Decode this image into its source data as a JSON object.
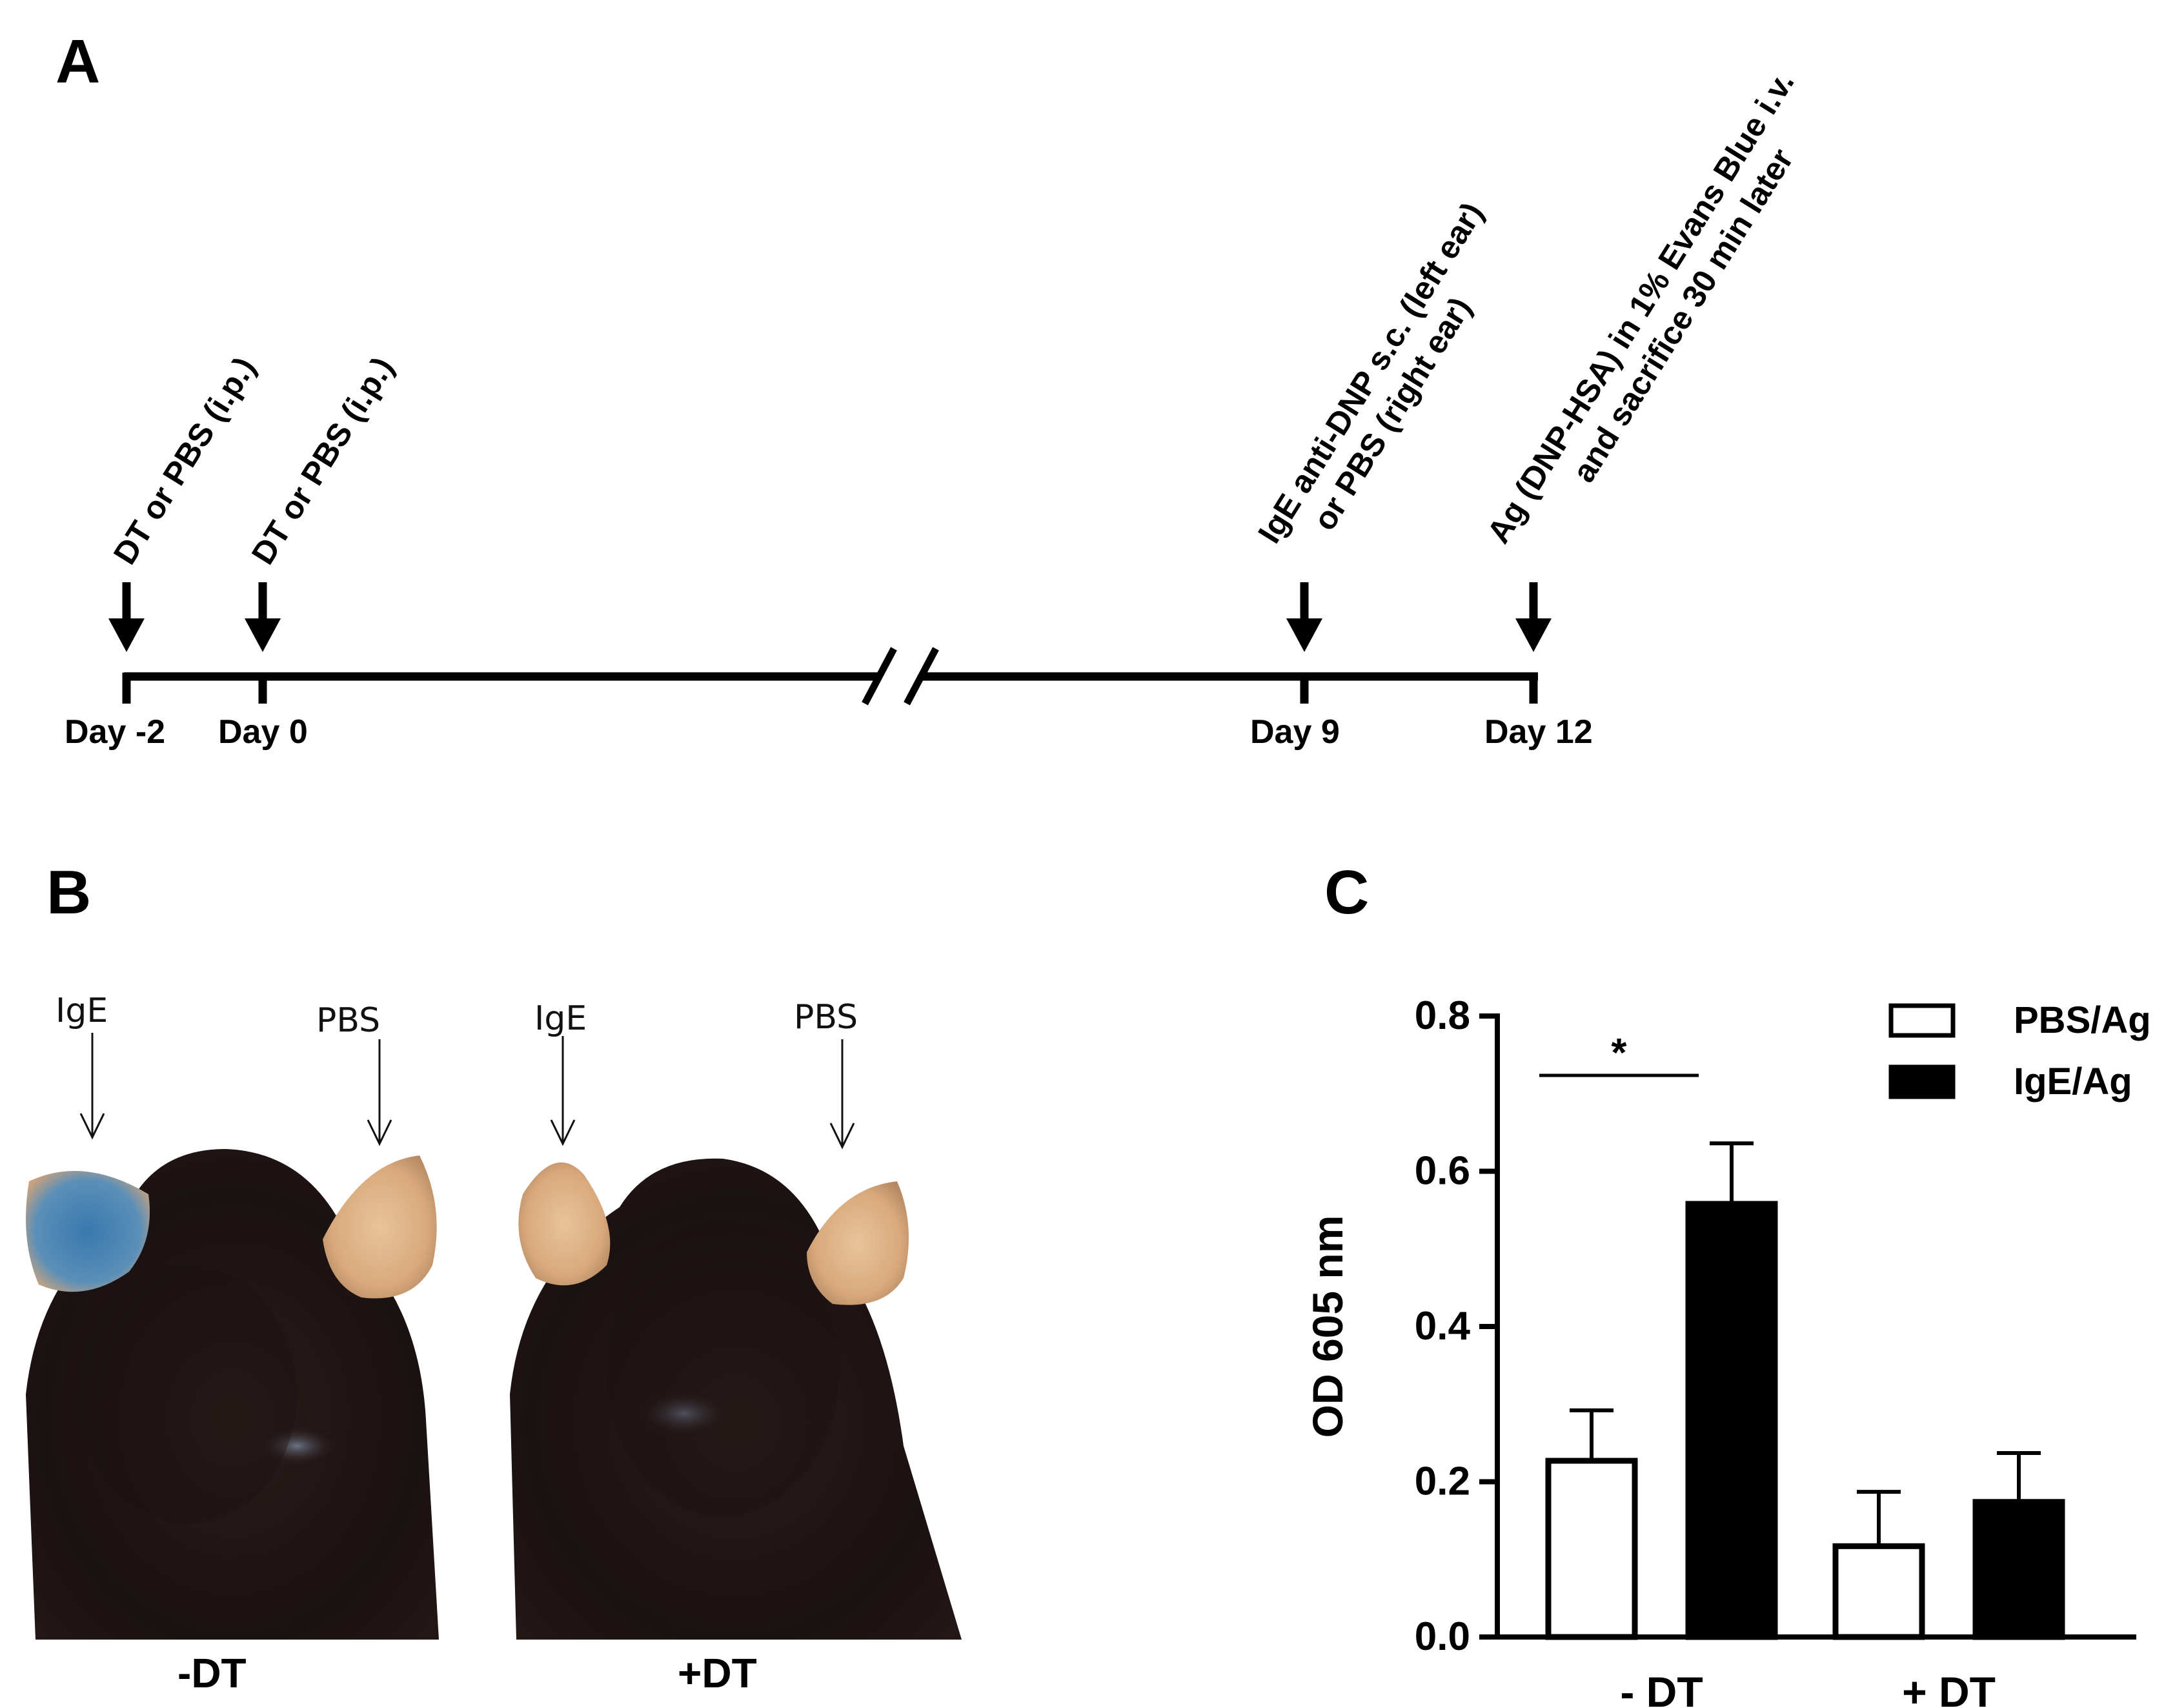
{
  "panel_a": {
    "letter": "A",
    "events": [
      {
        "day_label": "Day -2",
        "annotation_lines": [
          "DT or PBS (i.p.)"
        ]
      },
      {
        "day_label": "Day 0",
        "annotation_lines": [
          "DT or PBS (i.p.)"
        ]
      },
      {
        "day_label": "Day 9",
        "annotation_lines": [
          "IgE anti-DNP s.c. (left ear)",
          "or PBS (right ear)"
        ]
      },
      {
        "day_label": "Day 12",
        "annotation_lines": [
          "Ag (DNP-HSA) in 1% Evans Blue i.v.",
          "and sacrifice 30 min later"
        ]
      }
    ]
  },
  "panel_b": {
    "letter": "B",
    "photos": [
      {
        "condition": "-DT",
        "left_label": "IgE",
        "right_label": "PBS",
        "left_ear_color": "#4f86b3",
        "right_ear_color": "#d9a97c"
      },
      {
        "condition": "+DT",
        "left_label": "IgE",
        "right_label": "PBS",
        "left_ear_color": "#d5a27a",
        "right_ear_color": "#dcac80"
      }
    ]
  },
  "panel_c": {
    "letter": "C",
    "chart_data": {
      "type": "bar",
      "categories": [
        "- DT",
        "+ DT"
      ],
      "series": [
        {
          "name": "PBS/Ag",
          "fill": "#ffffff",
          "values": [
            0.227,
            0.117
          ],
          "errors": [
            0.065,
            0.07
          ]
        },
        {
          "name": "IgE/Ag",
          "fill": "#000000",
          "values": [
            0.558,
            0.174
          ],
          "errors": [
            0.078,
            0.063
          ]
        }
      ],
      "ylabel": "OD 605 nm",
      "ylim": [
        0.0,
        0.8
      ],
      "yticks": [
        0.0,
        0.2,
        0.4,
        0.6,
        0.8
      ],
      "ytick_labels": [
        "0.0",
        "0.2",
        "0.4",
        "0.6",
        "0.8"
      ],
      "legend_position": "top-right",
      "significance": {
        "category": "- DT",
        "label": "*"
      },
      "grid": false
    }
  }
}
